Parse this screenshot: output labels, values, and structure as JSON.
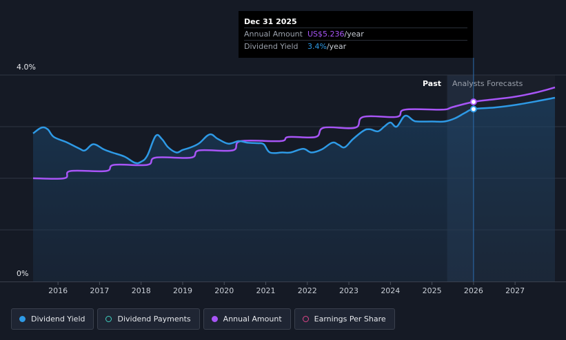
{
  "tooltip": {
    "date": "Dec 31 2025",
    "row1_label": "Annual Amount",
    "row1_value": "US$5.236",
    "row1_unit": "/year",
    "row2_label": "Dividend Yield",
    "row2_value": "3.4%",
    "row2_unit": "/year"
  },
  "legend": {
    "items": [
      {
        "label": "Dividend Yield",
        "color": "#2e9ae6",
        "style": "filled"
      },
      {
        "label": "Dividend Payments",
        "color": "#3fd0c0",
        "style": "outline"
      },
      {
        "label": "Annual Amount",
        "color": "#a855f7",
        "style": "filled"
      },
      {
        "label": "Earnings Per Share",
        "color": "#e0458a",
        "style": "outline"
      }
    ]
  },
  "chart_data": {
    "type": "line",
    "past_label": "Past",
    "forecast_label": "Analysts Forecasts",
    "y_tick_labels": [
      {
        "value": 0,
        "label": "0%"
      },
      {
        "value": 4,
        "label": "4.0%"
      }
    ],
    "ylim": [
      0,
      4
    ],
    "y_grid": [
      0,
      1,
      2,
      3,
      4
    ],
    "xlim": [
      2015.4,
      2027.96
    ],
    "x_ticks": [
      2016,
      2017,
      2018,
      2019,
      2020,
      2021,
      2022,
      2023,
      2024,
      2025,
      2026,
      2027
    ],
    "past_end": 2025.97,
    "highlight_x": 2026.0,
    "colors": {
      "yield": "#2e9ae6",
      "annual": "#a855f7"
    },
    "series": [
      {
        "name": "Dividend Yield",
        "color": "#2e9ae6",
        "points": [
          [
            2015.4,
            2.87
          ],
          [
            2015.6,
            2.98
          ],
          [
            2015.75,
            2.95
          ],
          [
            2015.9,
            2.8
          ],
          [
            2016.2,
            2.7
          ],
          [
            2016.5,
            2.58
          ],
          [
            2016.65,
            2.54
          ],
          [
            2016.85,
            2.66
          ],
          [
            2017.1,
            2.56
          ],
          [
            2017.3,
            2.5
          ],
          [
            2017.6,
            2.42
          ],
          [
            2017.85,
            2.3
          ],
          [
            2018.0,
            2.32
          ],
          [
            2018.15,
            2.44
          ],
          [
            2018.35,
            2.82
          ],
          [
            2018.5,
            2.76
          ],
          [
            2018.65,
            2.6
          ],
          [
            2018.85,
            2.5
          ],
          [
            2019.0,
            2.55
          ],
          [
            2019.2,
            2.6
          ],
          [
            2019.4,
            2.68
          ],
          [
            2019.65,
            2.85
          ],
          [
            2019.85,
            2.76
          ],
          [
            2020.1,
            2.67
          ],
          [
            2020.35,
            2.72
          ],
          [
            2020.55,
            2.69
          ],
          [
            2020.8,
            2.68
          ],
          [
            2020.95,
            2.66
          ],
          [
            2021.1,
            2.5
          ],
          [
            2021.4,
            2.5
          ],
          [
            2021.6,
            2.5
          ],
          [
            2021.9,
            2.57
          ],
          [
            2022.1,
            2.5
          ],
          [
            2022.35,
            2.56
          ],
          [
            2022.6,
            2.69
          ],
          [
            2022.75,
            2.65
          ],
          [
            2022.9,
            2.6
          ],
          [
            2023.1,
            2.76
          ],
          [
            2023.35,
            2.92
          ],
          [
            2023.5,
            2.95
          ],
          [
            2023.7,
            2.91
          ],
          [
            2023.85,
            3.0
          ],
          [
            2024.0,
            3.08
          ],
          [
            2024.15,
            3.0
          ],
          [
            2024.35,
            3.21
          ],
          [
            2024.55,
            3.12
          ],
          [
            2024.65,
            3.1
          ],
          [
            2025.0,
            3.1
          ],
          [
            2025.3,
            3.1
          ],
          [
            2025.55,
            3.16
          ],
          [
            2025.8,
            3.27
          ],
          [
            2026.0,
            3.34
          ],
          [
            2026.5,
            3.37
          ],
          [
            2027.0,
            3.42
          ],
          [
            2027.5,
            3.49
          ],
          [
            2027.96,
            3.56
          ]
        ]
      },
      {
        "name": "Annual Amount",
        "color": "#a855f7",
        "points": [
          [
            2015.4,
            2.0
          ],
          [
            2016.15,
            2.0
          ],
          [
            2016.3,
            2.14
          ],
          [
            2017.15,
            2.14
          ],
          [
            2017.35,
            2.26
          ],
          [
            2018.15,
            2.26
          ],
          [
            2018.35,
            2.4
          ],
          [
            2019.2,
            2.4
          ],
          [
            2019.4,
            2.54
          ],
          [
            2020.2,
            2.54
          ],
          [
            2020.4,
            2.72
          ],
          [
            2021.35,
            2.72
          ],
          [
            2021.55,
            2.8
          ],
          [
            2022.2,
            2.8
          ],
          [
            2022.4,
            2.98
          ],
          [
            2023.15,
            2.98
          ],
          [
            2023.35,
            3.19
          ],
          [
            2024.15,
            3.19
          ],
          [
            2024.35,
            3.33
          ],
          [
            2025.25,
            3.33
          ],
          [
            2025.5,
            3.38
          ],
          [
            2026.0,
            3.48
          ],
          [
            2026.5,
            3.53
          ],
          [
            2027.0,
            3.58
          ],
          [
            2027.5,
            3.66
          ],
          [
            2027.96,
            3.76
          ]
        ]
      }
    ]
  }
}
